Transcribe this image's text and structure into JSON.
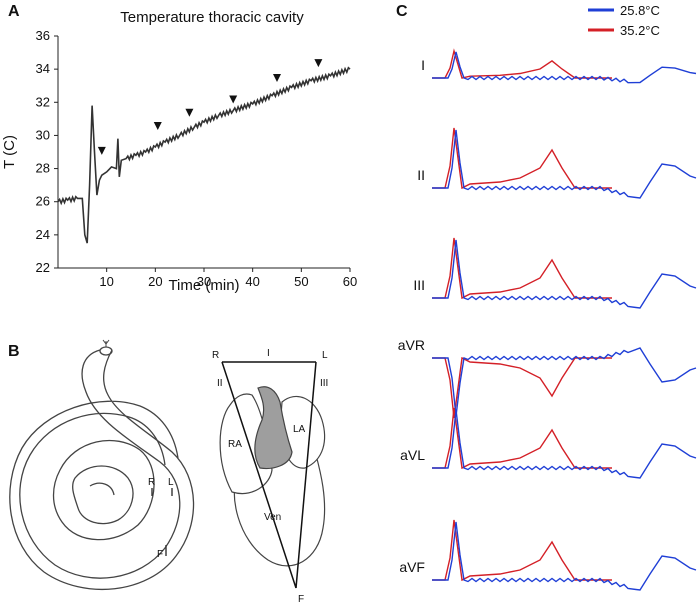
{
  "panels": {
    "a": {
      "letter": "A"
    },
    "b": {
      "letter": "B"
    },
    "c": {
      "letter": "C"
    }
  },
  "chart_data": [
    {
      "type": "line",
      "title": "Temperature thoracic cavity",
      "xlabel": "Time (min)",
      "ylabel": "T (C)",
      "xlim": [
        0,
        60
      ],
      "ylim": [
        22,
        36
      ],
      "xticks": [
        10,
        20,
        30,
        40,
        50,
        60
      ],
      "yticks": [
        22,
        24,
        26,
        28,
        30,
        32,
        34,
        36
      ],
      "grid": false,
      "series": [
        {
          "x": [
            0,
            2,
            4,
            5,
            5.5,
            6,
            6.5,
            7,
            7.5,
            8,
            8.5,
            9,
            10,
            11,
            12,
            12.3,
            12.6,
            13,
            14,
            16,
            18,
            20,
            22,
            25,
            28,
            30,
            33,
            36,
            40,
            44,
            48,
            52,
            56,
            60
          ],
          "y": [
            26.0,
            26.1,
            26.2,
            26.2,
            24.0,
            23.5,
            27.0,
            31.8,
            29.0,
            26.4,
            27.3,
            27.6,
            27.8,
            28.1,
            28.0,
            29.8,
            27.5,
            28.5,
            28.6,
            28.8,
            29.0,
            29.3,
            29.6,
            30.0,
            30.5,
            30.8,
            31.2,
            31.5,
            31.9,
            32.4,
            32.9,
            33.3,
            33.6,
            34.0
          ]
        }
      ],
      "markers": [
        {
          "x": 9,
          "y": 28.1
        },
        {
          "x": 20.5,
          "y": 29.6
        },
        {
          "x": 27,
          "y": 30.4
        },
        {
          "x": 36,
          "y": 31.2
        },
        {
          "x": 45,
          "y": 32.5
        },
        {
          "x": 53.5,
          "y": 33.4
        }
      ]
    },
    {
      "type": "line",
      "legend_position": "top-right",
      "series": [
        {
          "name": "25.8°C",
          "color": "#1f3fd6"
        },
        {
          "name": "35.2°C",
          "color": "#d42027"
        }
      ],
      "leads": [
        "I",
        "II",
        "III",
        "aVR",
        "aVL",
        "aVF"
      ]
    }
  ],
  "diagram": {
    "electrodes": [
      "R",
      "L",
      "F"
    ],
    "triangle_sides": [
      "I",
      "II",
      "III"
    ],
    "heart_chambers": [
      "RA",
      "LA",
      "Ven"
    ]
  }
}
